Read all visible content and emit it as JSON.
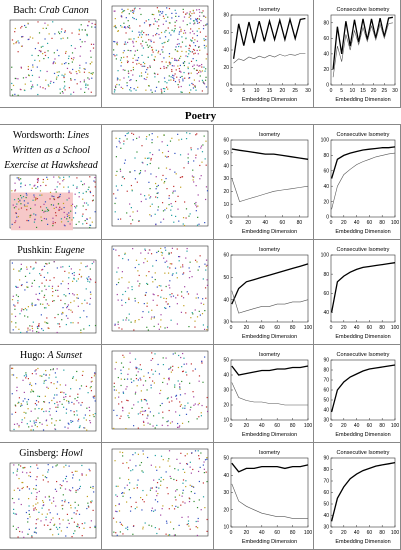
{
  "section_header": "Poetry",
  "rows": [
    {
      "author": "Bach:",
      "work": "Crab Canon",
      "isometry": {
        "type": "line",
        "title": "Isometry",
        "x_label": "Embedding Dimension",
        "x": [
          1,
          3,
          5,
          7,
          9,
          11,
          13,
          15,
          17,
          19,
          21,
          23,
          25,
          27,
          29
        ],
        "xlim": [
          0,
          30
        ],
        "xticks": [
          0,
          5,
          10,
          15,
          20,
          25,
          30
        ],
        "ylim": [
          0,
          80
        ],
        "yticks": [
          0,
          20,
          40,
          60,
          80
        ],
        "series": [
          {
            "color": "#000000",
            "values": [
              30,
              70,
              45,
              72,
              48,
              73,
              50,
              73,
              52,
              74,
              52,
              75,
              53,
              75,
              76
            ]
          },
          {
            "color": "#555555",
            "values": [
              25,
              30,
              28,
              32,
              30,
              33,
              31,
              34,
              32,
              35,
              33,
              35,
              34,
              36,
              36
            ]
          }
        ]
      },
      "consecutive": {
        "type": "line",
        "title": "Consecutive Isometry",
        "x_label": "Embedding Dimension",
        "x": [
          1,
          3,
          5,
          7,
          9,
          11,
          13,
          15,
          17,
          19,
          21,
          23,
          25,
          27,
          29
        ],
        "xlim": [
          0,
          30
        ],
        "xticks": [
          0,
          5,
          10,
          15,
          20,
          25,
          30
        ],
        "ylim": [
          0,
          90
        ],
        "yticks": [
          0,
          20,
          40,
          60,
          80
        ],
        "series": [
          {
            "color": "#000000",
            "values": [
              20,
              75,
              40,
              82,
              50,
              84,
              55,
              85,
              58,
              85,
              60,
              86,
              62,
              86,
              87
            ]
          },
          {
            "color": "#555555",
            "values": [
              10,
              50,
              30,
              65,
              45,
              70,
              52,
              74,
              56,
              76,
              58,
              78,
              60,
              79,
              80
            ]
          }
        ]
      }
    },
    {
      "author": "Wordsworth:",
      "work": "Lines Written as a School Exercise at Hawkshead",
      "isometry": {
        "type": "line",
        "title": "Isometry",
        "x_label": "Embedding Dimension",
        "x": [
          1,
          10,
          20,
          30,
          40,
          50,
          60,
          70,
          80,
          90
        ],
        "xlim": [
          0,
          90
        ],
        "xticks": [
          0,
          20,
          40,
          60,
          80
        ],
        "ylim": [
          0,
          60
        ],
        "yticks": [
          0,
          10,
          20,
          30,
          40,
          50,
          60
        ],
        "series": [
          {
            "color": "#000000",
            "values": [
              53,
              52,
              51,
              50,
              49,
              49,
              48,
              47,
              46,
              45
            ]
          },
          {
            "color": "#555555",
            "values": [
              30,
              12,
              14,
              16,
              18,
              20,
              21,
              22,
              23,
              24
            ]
          }
        ]
      },
      "consecutive": {
        "type": "line",
        "title": "Consecutive Isometry",
        "x_label": "Embedding Dimension",
        "x": [
          1,
          10,
          20,
          30,
          40,
          50,
          60,
          70,
          80,
          90,
          100
        ],
        "xlim": [
          0,
          100
        ],
        "xticks": [
          0,
          20,
          40,
          60,
          80,
          100
        ],
        "ylim": [
          0,
          100
        ],
        "yticks": [
          0,
          20,
          40,
          60,
          80,
          100
        ],
        "series": [
          {
            "color": "#000000",
            "values": [
              50,
              75,
              80,
              83,
              85,
              87,
              88,
              89,
              90,
              90,
              91
            ]
          },
          {
            "color": "#555555",
            "values": [
              10,
              40,
              55,
              62,
              68,
              72,
              75,
              78,
              80,
              82,
              83
            ]
          }
        ]
      }
    },
    {
      "author": "Pushkin:",
      "work": "Eugene Onegin",
      "isometry": {
        "type": "line",
        "title": "Isometry",
        "x_label": "Embedding Dimension",
        "x": [
          1,
          10,
          20,
          30,
          40,
          50,
          60,
          70,
          80,
          90,
          100
        ],
        "xlim": [
          0,
          100
        ],
        "xticks": [
          0,
          20,
          40,
          60,
          80,
          100
        ],
        "ylim": [
          30,
          60
        ],
        "yticks": [
          30,
          40,
          50,
          60
        ],
        "series": [
          {
            "color": "#000000",
            "values": [
              38,
              45,
              48,
              49,
              50,
              51,
              52,
              53,
              54,
              55,
              56
            ]
          },
          {
            "color": "#555555",
            "values": [
              44,
              34,
              35,
              36,
              37,
              37,
              38,
              38,
              39,
              39,
              40
            ]
          }
        ]
      },
      "consecutive": {
        "type": "line",
        "title": "Consecutive Isometry",
        "x_label": "Embedding Dimension",
        "x": [
          1,
          10,
          20,
          30,
          40,
          50,
          60,
          70,
          80,
          90,
          100
        ],
        "xlim": [
          0,
          100
        ],
        "xticks": [
          0,
          20,
          40,
          60,
          80,
          100
        ],
        "ylim": [
          30,
          100
        ],
        "yticks": [
          40,
          60,
          80,
          100
        ],
        "series": [
          {
            "color": "#000000",
            "values": [
              40,
              72,
              78,
              82,
              85,
              87,
              88,
              89,
              90,
              91,
              92
            ]
          }
        ]
      }
    },
    {
      "author": "Hugo:",
      "work": "A Sunset",
      "isometry": {
        "type": "line",
        "title": "Isometry",
        "x_label": "Embedding Dimension",
        "x": [
          1,
          10,
          20,
          30,
          40,
          50,
          60,
          70,
          80,
          90,
          100
        ],
        "xlim": [
          0,
          100
        ],
        "xticks": [
          0,
          20,
          40,
          60,
          80,
          100
        ],
        "ylim": [
          10,
          50
        ],
        "yticks": [
          10,
          20,
          30,
          40,
          50
        ],
        "series": [
          {
            "color": "#000000",
            "values": [
              46,
              40,
              41,
              42,
              43,
              43,
              44,
              44,
              45,
              45,
              46
            ]
          },
          {
            "color": "#555555",
            "values": [
              35,
              25,
              23,
              22,
              22,
              21,
              21,
              20,
              20,
              20,
              20
            ]
          }
        ]
      },
      "consecutive": {
        "type": "line",
        "title": "Consecutive Isometry",
        "x_label": "Embedding Dimension",
        "x": [
          1,
          10,
          20,
          30,
          40,
          50,
          60,
          70,
          80,
          90,
          100
        ],
        "xlim": [
          0,
          100
        ],
        "xticks": [
          0,
          20,
          40,
          60,
          80,
          100
        ],
        "ylim": [
          30,
          90
        ],
        "yticks": [
          30,
          40,
          50,
          60,
          70,
          80,
          90
        ],
        "series": [
          {
            "color": "#000000",
            "values": [
              38,
              60,
              68,
              73,
              76,
              79,
              81,
              82,
              83,
              84,
              85
            ]
          }
        ]
      }
    },
    {
      "author": "Ginsberg:",
      "work": "Howl",
      "isometry": {
        "type": "line",
        "title": "Isometry",
        "x_label": "Embedding Dimension",
        "x": [
          1,
          10,
          20,
          30,
          40,
          50,
          60,
          70,
          80,
          90,
          100
        ],
        "xlim": [
          0,
          100
        ],
        "xticks": [
          0,
          20,
          40,
          60,
          80,
          100
        ],
        "ylim": [
          10,
          50
        ],
        "yticks": [
          10,
          20,
          30,
          40,
          50
        ],
        "series": [
          {
            "color": "#000000",
            "values": [
              47,
              42,
              44,
              44,
              45,
              45,
              45,
              44,
              45,
              45,
              46
            ]
          },
          {
            "color": "#555555",
            "values": [
              35,
              25,
              22,
              20,
              18,
              17,
              16,
              16,
              15,
              15,
              15
            ]
          }
        ]
      },
      "consecutive": {
        "type": "line",
        "title": "Consecutive Isometry",
        "x_label": "Embedding Dimension",
        "x": [
          1,
          10,
          20,
          30,
          40,
          50,
          60,
          70,
          80,
          90,
          100
        ],
        "xlim": [
          0,
          100
        ],
        "xticks": [
          0,
          20,
          40,
          60,
          80,
          100
        ],
        "ylim": [
          30,
          90
        ],
        "yticks": [
          30,
          40,
          50,
          60,
          70,
          80,
          90
        ],
        "series": [
          {
            "color": "#000000",
            "values": [
              35,
              55,
              65,
              72,
              76,
              79,
              81,
              83,
              84,
              85,
              86
            ]
          }
        ]
      }
    }
  ]
}
